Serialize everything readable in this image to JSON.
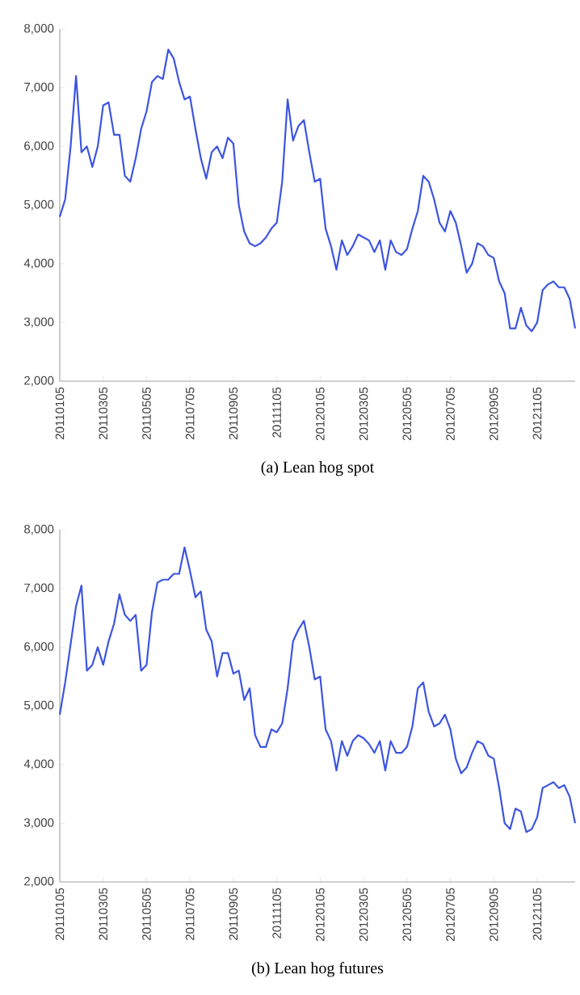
{
  "chart_data": [
    {
      "type": "line",
      "title": "(a)  Lean  hog  spot",
      "categories": [
        "20110105",
        null,
        null,
        null,
        null,
        null,
        null,
        null,
        "20110305",
        null,
        null,
        null,
        null,
        null,
        null,
        null,
        "20110505",
        null,
        null,
        null,
        null,
        null,
        null,
        null,
        "20110705",
        null,
        null,
        null,
        null,
        null,
        null,
        null,
        "20110905",
        null,
        null,
        null,
        null,
        null,
        null,
        null,
        "20111105",
        null,
        null,
        null,
        null,
        null,
        null,
        null,
        "20120105",
        null,
        null,
        null,
        null,
        null,
        null,
        null,
        "20120305",
        null,
        null,
        null,
        null,
        null,
        null,
        null,
        "20120505",
        null,
        null,
        null,
        null,
        null,
        null,
        null,
        "20120705",
        null,
        null,
        null,
        null,
        null,
        null,
        null,
        "20120905",
        null,
        null,
        null,
        null,
        null,
        null,
        null,
        "20121105",
        null,
        null,
        null,
        null,
        null,
        null,
        null
      ],
      "series": [
        {
          "color": "#3d55e0",
          "values": [
            4800,
            5100,
            6000,
            7200,
            5900,
            6000,
            5650,
            6000,
            6700,
            6750,
            6200,
            6200,
            5500,
            5400,
            5800,
            6300,
            6600,
            7100,
            7200,
            7150,
            7650,
            7500,
            7100,
            6800,
            6850,
            6300,
            5800,
            5450,
            5900,
            6000,
            5800,
            6150,
            6050,
            5000,
            4550,
            4350,
            4300,
            4350,
            4450,
            4600,
            4700,
            5400,
            6800,
            6100,
            6350,
            6450,
            5900,
            5400,
            5450,
            4600,
            4300,
            3900,
            4400,
            4150,
            4300,
            4500,
            4450,
            4400,
            4200,
            4400,
            3900,
            4400,
            4200,
            4150,
            4250,
            4600,
            4900,
            5500,
            5400,
            5100,
            4700,
            4550,
            4900,
            4700,
            4300,
            3850,
            4000,
            4350,
            4300,
            4150,
            4100,
            3700,
            3500,
            2900,
            2900,
            3250,
            2950,
            2850,
            3000,
            3550,
            3650,
            3700,
            3600,
            3600,
            3400,
            2900
          ]
        }
      ],
      "ylim": [
        2000,
        8000
      ],
      "yticks": [
        {
          "value": 2000,
          "label": "2,000"
        },
        {
          "value": 3000,
          "label": "3,000"
        },
        {
          "value": 4000,
          "label": "4,000"
        },
        {
          "value": 5000,
          "label": "5,000"
        },
        {
          "value": 6000,
          "label": "6,000"
        },
        {
          "value": 7000,
          "label": "7,000"
        },
        {
          "value": 8000,
          "label": "8,000"
        }
      ],
      "marker": "none",
      "line_style": "solid"
    },
    {
      "type": "line",
      "title": "(b)  Lean  hog  futures",
      "categories": [
        "20110105",
        null,
        null,
        null,
        null,
        null,
        null,
        null,
        "20110305",
        null,
        null,
        null,
        null,
        null,
        null,
        null,
        "20110505",
        null,
        null,
        null,
        null,
        null,
        null,
        null,
        "20110705",
        null,
        null,
        null,
        null,
        null,
        null,
        null,
        "20110905",
        null,
        null,
        null,
        null,
        null,
        null,
        null,
        "20111105",
        null,
        null,
        null,
        null,
        null,
        null,
        null,
        "20120105",
        null,
        null,
        null,
        null,
        null,
        null,
        null,
        "20120305",
        null,
        null,
        null,
        null,
        null,
        null,
        null,
        "20120505",
        null,
        null,
        null,
        null,
        null,
        null,
        null,
        "20120705",
        null,
        null,
        null,
        null,
        null,
        null,
        null,
        "20120905",
        null,
        null,
        null,
        null,
        null,
        null,
        null,
        "20121105",
        null,
        null,
        null,
        null,
        null,
        null,
        null
      ],
      "series": [
        {
          "color": "#3d55e0",
          "values": [
            4850,
            5400,
            6050,
            6700,
            7050,
            5600,
            5700,
            6000,
            5700,
            6100,
            6400,
            6900,
            6550,
            6450,
            6550,
            5600,
            5700,
            6600,
            7100,
            7150,
            7150,
            7250,
            7250,
            7700,
            7300,
            6850,
            6950,
            6300,
            6100,
            5500,
            5900,
            5900,
            5550,
            5600,
            5100,
            5300,
            4500,
            4300,
            4300,
            4600,
            4550,
            4700,
            5300,
            6100,
            6300,
            6450,
            6000,
            5450,
            5500,
            4600,
            4400,
            3900,
            4400,
            4150,
            4400,
            4500,
            4450,
            4350,
            4200,
            4400,
            3900,
            4400,
            4200,
            4200,
            4300,
            4650,
            5300,
            5400,
            4900,
            4650,
            4700,
            4850,
            4600,
            4100,
            3850,
            3950,
            4200,
            4400,
            4350,
            4150,
            4100,
            3600,
            3000,
            2900,
            3250,
            3200,
            2850,
            2900,
            3100,
            3600,
            3650,
            3700,
            3600,
            3650,
            3450,
            3000
          ]
        }
      ],
      "ylim": [
        2000,
        8000
      ],
      "yticks": [
        {
          "value": 2000,
          "label": "2,000"
        },
        {
          "value": 3000,
          "label": "3,000"
        },
        {
          "value": 4000,
          "label": "4,000"
        },
        {
          "value": 5000,
          "label": "5,000"
        },
        {
          "value": 6000,
          "label": "6,000"
        },
        {
          "value": 7000,
          "label": "7,000"
        },
        {
          "value": 8000,
          "label": "8,000"
        }
      ],
      "marker": "none",
      "line_style": "solid"
    }
  ]
}
